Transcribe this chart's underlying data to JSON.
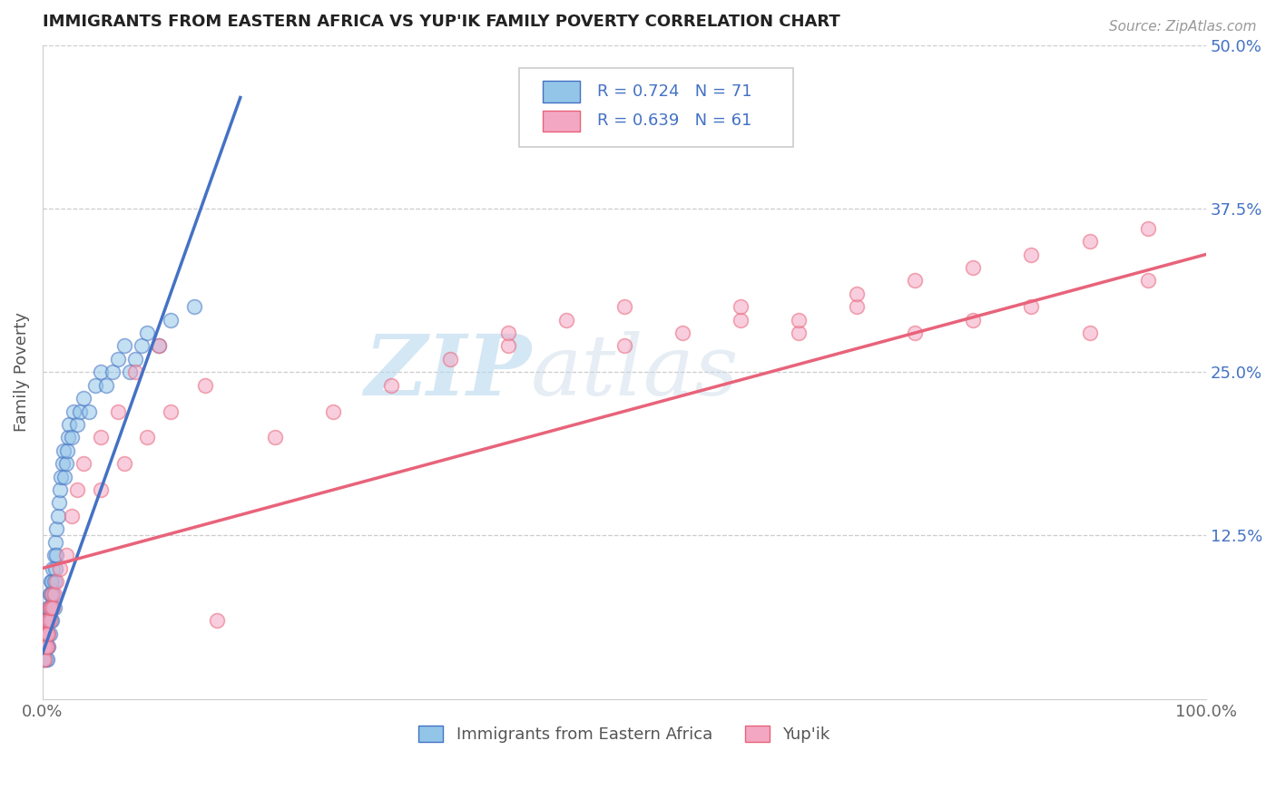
{
  "title": "IMMIGRANTS FROM EASTERN AFRICA VS YUP'IK FAMILY POVERTY CORRELATION CHART",
  "source": "Source: ZipAtlas.com",
  "ylabel": "Family Poverty",
  "xlim": [
    0,
    1.0
  ],
  "ylim": [
    0,
    0.5
  ],
  "xtick_labels": [
    "0.0%",
    "100.0%"
  ],
  "ytick_labels": [
    "12.5%",
    "25.0%",
    "37.5%",
    "50.0%"
  ],
  "ytick_values": [
    0.125,
    0.25,
    0.375,
    0.5
  ],
  "background_color": "#ffffff",
  "watermark_zip": "ZIP",
  "watermark_atlas": "atlas",
  "legend_line1": "R = 0.724   N = 71",
  "legend_line2": "R = 0.639   N = 61",
  "color_blue": "#92C5E8",
  "color_pink": "#F4A7C3",
  "color_blue_line": "#4472C4",
  "color_pink_line": "#E8637A",
  "color_blue_text": "#4472C4",
  "scatter_blue_x": [
    0.001,
    0.001,
    0.001,
    0.001,
    0.002,
    0.002,
    0.002,
    0.002,
    0.002,
    0.002,
    0.003,
    0.003,
    0.003,
    0.003,
    0.003,
    0.004,
    0.004,
    0.004,
    0.004,
    0.005,
    0.005,
    0.005,
    0.005,
    0.006,
    0.006,
    0.006,
    0.007,
    0.007,
    0.007,
    0.008,
    0.008,
    0.008,
    0.009,
    0.009,
    0.01,
    0.01,
    0.01,
    0.011,
    0.011,
    0.012,
    0.012,
    0.013,
    0.014,
    0.015,
    0.016,
    0.017,
    0.018,
    0.019,
    0.02,
    0.021,
    0.022,
    0.023,
    0.025,
    0.027,
    0.03,
    0.032,
    0.035,
    0.04,
    0.045,
    0.05,
    0.055,
    0.06,
    0.065,
    0.07,
    0.075,
    0.08,
    0.085,
    0.09,
    0.1,
    0.11,
    0.13
  ],
  "scatter_blue_y": [
    0.04,
    0.05,
    0.06,
    0.03,
    0.04,
    0.05,
    0.06,
    0.03,
    0.04,
    0.05,
    0.04,
    0.05,
    0.06,
    0.04,
    0.03,
    0.05,
    0.06,
    0.04,
    0.03,
    0.06,
    0.07,
    0.05,
    0.04,
    0.07,
    0.08,
    0.05,
    0.08,
    0.09,
    0.06,
    0.09,
    0.07,
    0.06,
    0.1,
    0.08,
    0.11,
    0.09,
    0.07,
    0.12,
    0.1,
    0.13,
    0.11,
    0.14,
    0.15,
    0.16,
    0.17,
    0.18,
    0.19,
    0.17,
    0.18,
    0.19,
    0.2,
    0.21,
    0.2,
    0.22,
    0.21,
    0.22,
    0.23,
    0.22,
    0.24,
    0.25,
    0.24,
    0.25,
    0.26,
    0.27,
    0.25,
    0.26,
    0.27,
    0.28,
    0.27,
    0.29,
    0.3
  ],
  "scatter_pink_x": [
    0.001,
    0.001,
    0.001,
    0.002,
    0.002,
    0.002,
    0.003,
    0.003,
    0.003,
    0.004,
    0.004,
    0.005,
    0.005,
    0.006,
    0.006,
    0.007,
    0.008,
    0.009,
    0.01,
    0.012,
    0.015,
    0.02,
    0.025,
    0.03,
    0.035,
    0.05,
    0.065,
    0.08,
    0.1,
    0.15,
    0.2,
    0.25,
    0.3,
    0.35,
    0.4,
    0.4,
    0.45,
    0.5,
    0.5,
    0.55,
    0.6,
    0.6,
    0.65,
    0.65,
    0.7,
    0.7,
    0.75,
    0.75,
    0.8,
    0.8,
    0.85,
    0.85,
    0.9,
    0.9,
    0.95,
    0.95,
    0.05,
    0.07,
    0.09,
    0.11,
    0.14
  ],
  "scatter_pink_y": [
    0.03,
    0.04,
    0.05,
    0.04,
    0.05,
    0.03,
    0.05,
    0.04,
    0.06,
    0.05,
    0.04,
    0.06,
    0.05,
    0.06,
    0.07,
    0.07,
    0.08,
    0.07,
    0.08,
    0.09,
    0.1,
    0.11,
    0.14,
    0.16,
    0.18,
    0.2,
    0.22,
    0.25,
    0.27,
    0.06,
    0.2,
    0.22,
    0.24,
    0.26,
    0.27,
    0.28,
    0.29,
    0.3,
    0.27,
    0.28,
    0.29,
    0.3,
    0.28,
    0.29,
    0.3,
    0.31,
    0.32,
    0.28,
    0.33,
    0.29,
    0.34,
    0.3,
    0.35,
    0.28,
    0.36,
    0.32,
    0.16,
    0.18,
    0.2,
    0.22,
    0.24
  ],
  "trendline_blue_x0": 0.0,
  "trendline_blue_x1": 0.17,
  "trendline_blue_y0": 0.035,
  "trendline_blue_y1": 0.46,
  "trendline_pink_x0": 0.0,
  "trendline_pink_x1": 1.0,
  "trendline_pink_y0": 0.1,
  "trendline_pink_y1": 0.34
}
